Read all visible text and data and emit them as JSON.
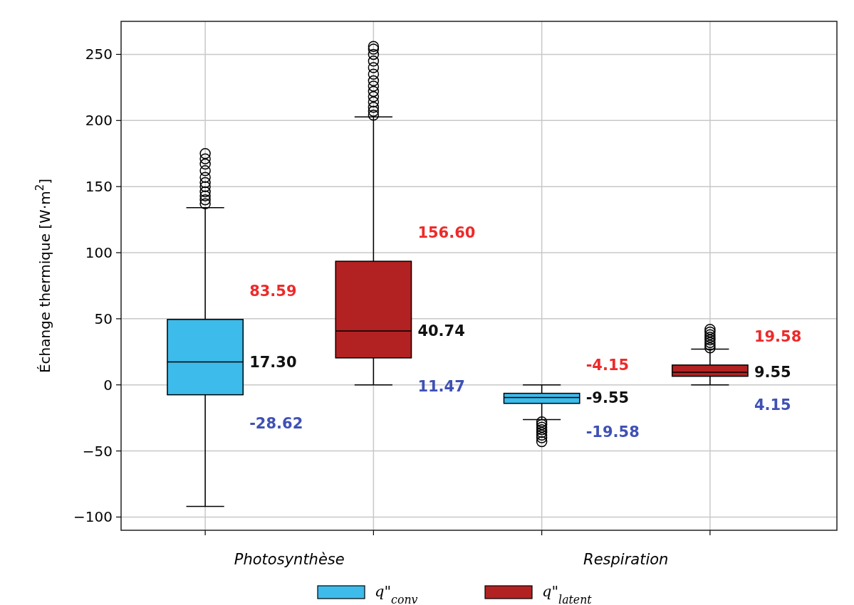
{
  "chart_data": {
    "type": "box",
    "ylabel": "Échange thermique [W·m$^{2}$]",
    "categories": [
      "Photosynthèse",
      "Respiration"
    ],
    "series": [
      {
        "name": "q\"$_{conv}$",
        "color": "#3dbbeb",
        "boxes": [
          {
            "low": -92,
            "q1": -7.5,
            "median": 17.3,
            "q3": 49.5,
            "high": 134,
            "outliers": [
              137,
              140,
              143,
              146,
              150,
              153,
              157,
              162,
              167,
              171,
              175
            ]
          },
          {
            "low": -26.3,
            "q1": -14,
            "median": -9.55,
            "q3": -6.4,
            "high": 0,
            "outliers": [
              -28,
              -30,
              -32,
              -34,
              -36,
              -38,
              -40,
              -43
            ]
          }
        ]
      },
      {
        "name": "q\"$_{latent}$",
        "color": "#b22222",
        "boxes": [
          {
            "low": 0,
            "q1": 20.4,
            "median": 40.74,
            "q3": 93.5,
            "high": 202.7,
            "outliers": [
              204,
              207,
              210,
              214,
              218,
              222,
              226,
              230,
              235,
              240,
              245,
              250,
              254,
              256
            ]
          },
          {
            "low": 0,
            "q1": 6.5,
            "median": 9.55,
            "q3": 15,
            "high": 27,
            "outliers": [
              28,
              30,
              32,
              34,
              36,
              38,
              40,
              42
            ]
          }
        ]
      }
    ],
    "ylim": [
      -110,
      275
    ],
    "yticks": [
      {
        "value": -100,
        "label": "−100"
      },
      {
        "value": -50,
        "label": "−50"
      },
      0,
      50,
      100,
      150,
      200,
      250
    ],
    "grid": true,
    "legend": "bottom",
    "annotations": [
      "83.59",
      "17.30",
      "-28.62",
      "156.60",
      "40.74",
      "11.47",
      "-4.15",
      "-9.55",
      "-19.58",
      "19.58",
      "9.55",
      "4.15"
    ]
  }
}
